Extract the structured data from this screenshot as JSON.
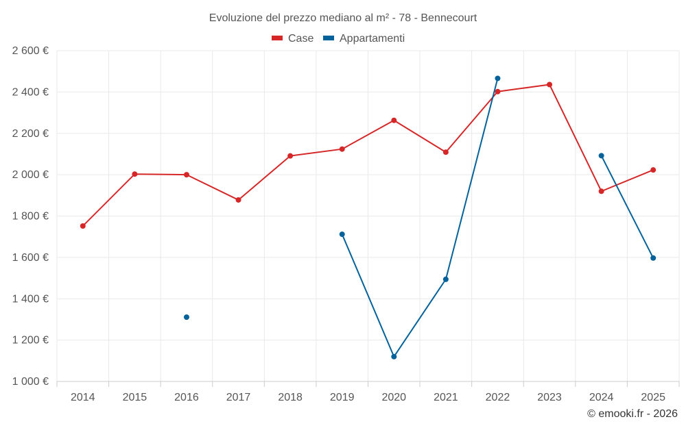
{
  "chart_data": {
    "type": "line",
    "title": "Evoluzione del prezzo mediano al m² - 78 - Bennecourt",
    "x": [
      "2014",
      "2015",
      "2016",
      "2017",
      "2018",
      "2019",
      "2020",
      "2021",
      "2022",
      "2023",
      "2024",
      "2025"
    ],
    "ylim": [
      1000,
      2600
    ],
    "y_ticks": [
      1000,
      1200,
      1400,
      1600,
      1800,
      2000,
      2200,
      2400,
      2600
    ],
    "y_tick_labels": [
      "1 000 €",
      "1 200 €",
      "1 400 €",
      "1 600 €",
      "1 800 €",
      "2 000 €",
      "2 200 €",
      "2 400 €",
      "2 600 €"
    ],
    "grid": true,
    "legend_position": "top-center",
    "series": [
      {
        "name": "Case",
        "color": "#d62728",
        "values": [
          1752,
          2003,
          2000,
          1878,
          2091,
          2124,
          2263,
          2109,
          2402,
          2436,
          1920,
          2023
        ]
      },
      {
        "name": "Appartamenti",
        "color": "#03629a",
        "values": [
          null,
          null,
          1311,
          null,
          null,
          1712,
          1120,
          1494,
          2466,
          null,
          2092,
          1597
        ]
      }
    ],
    "credit": "© emooki.fr - 2026"
  }
}
